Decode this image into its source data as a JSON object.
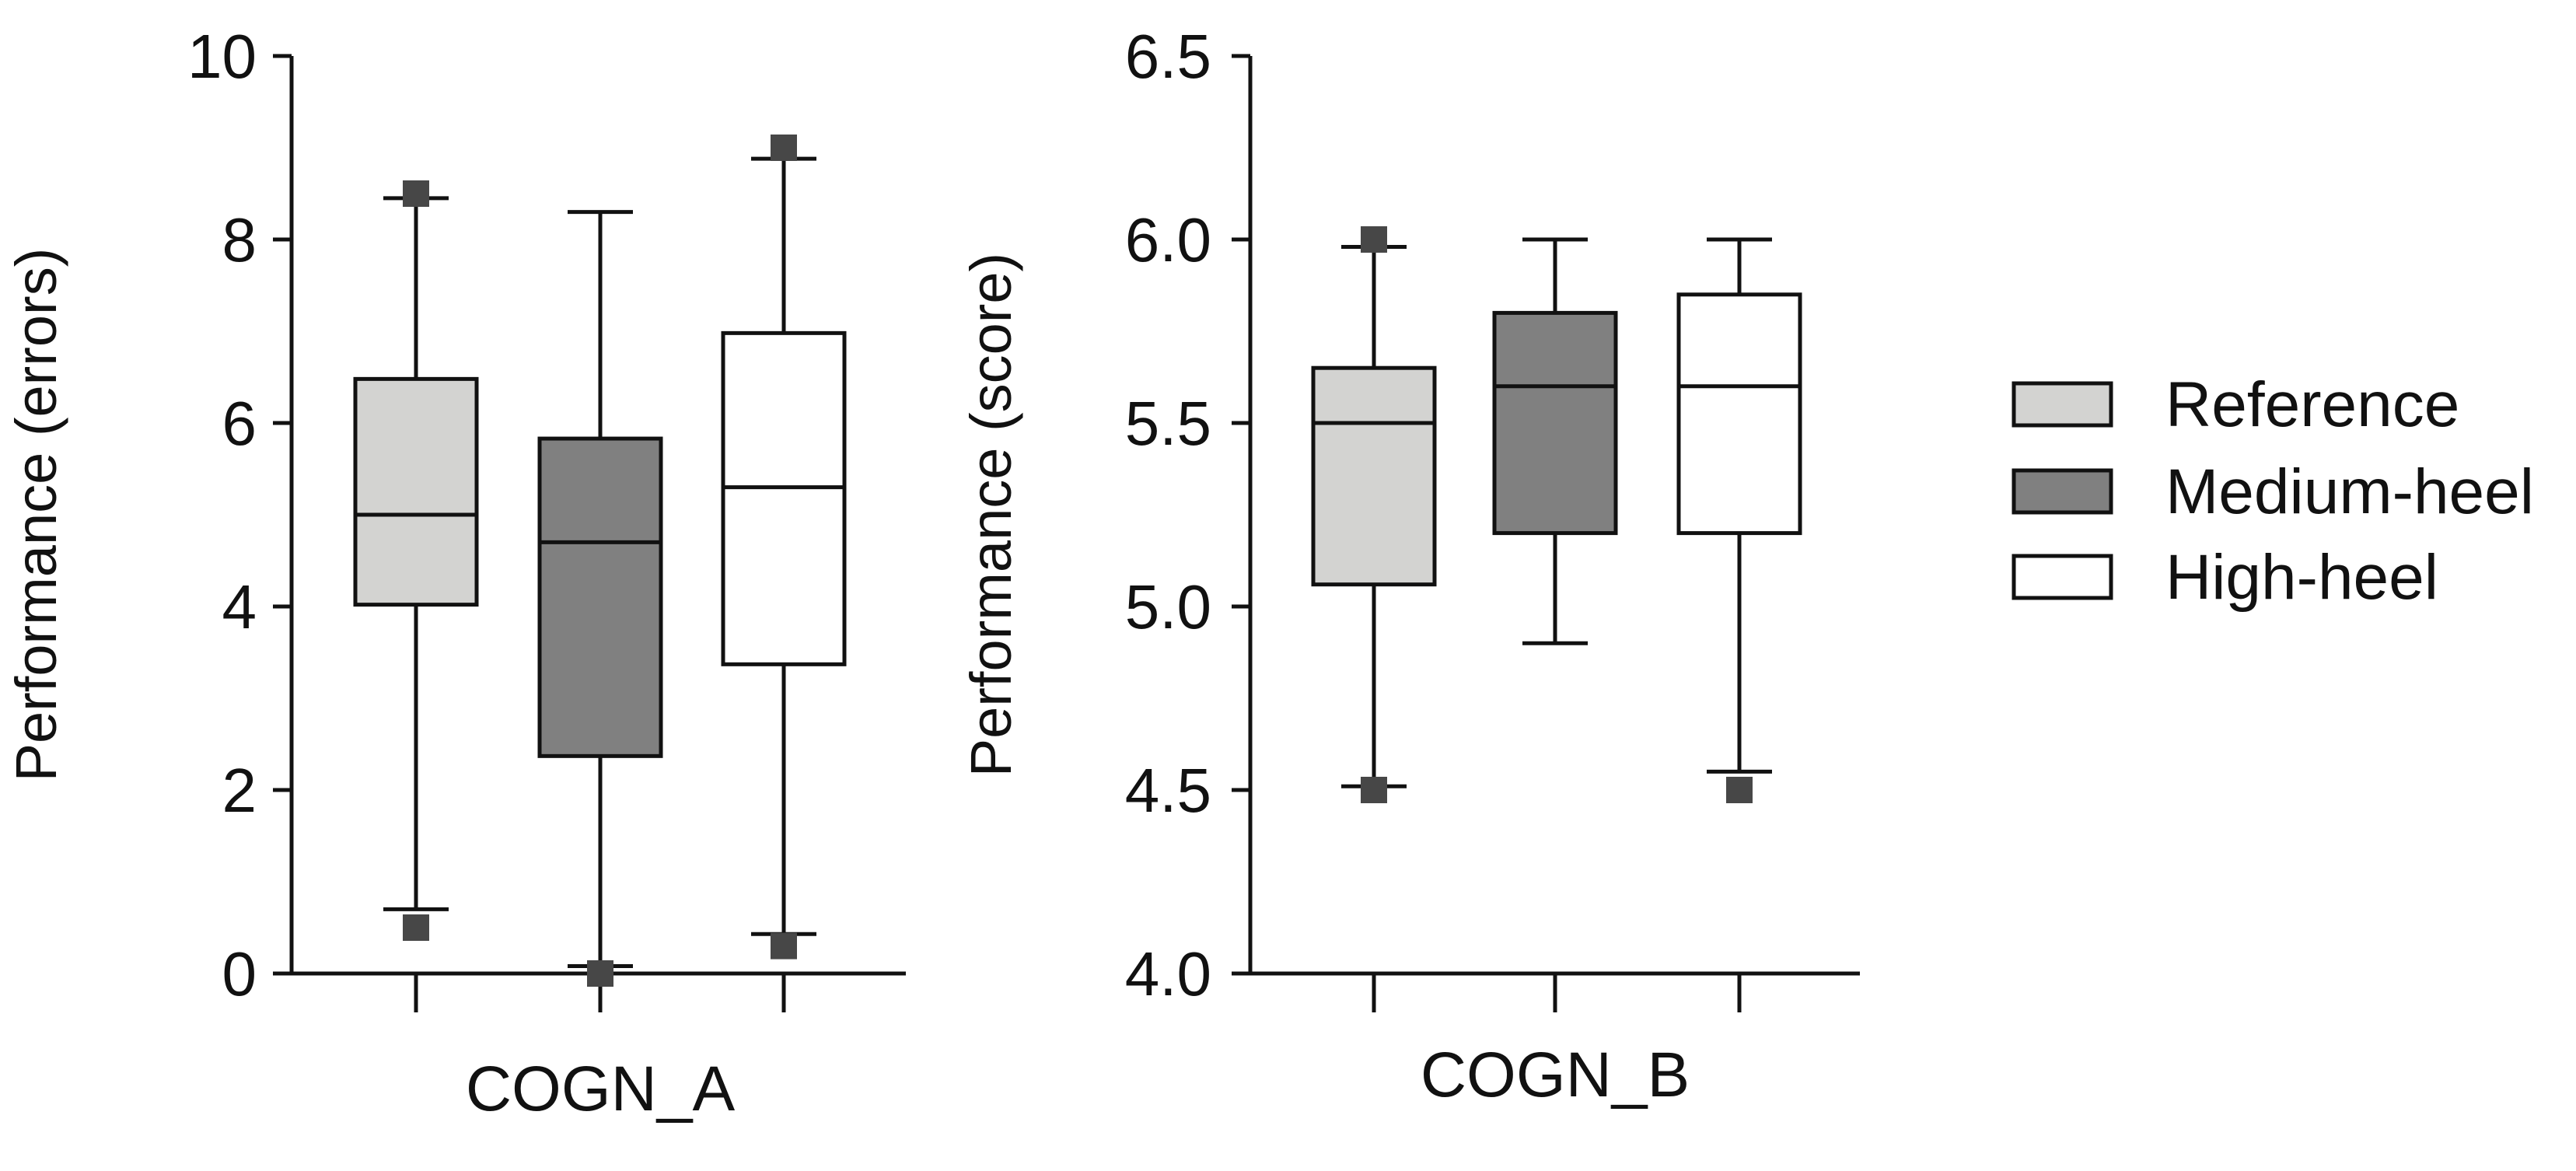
{
  "chart_data": [
    {
      "type": "box",
      "xlabel": "COGN_A",
      "ylabel": "Performance (errors)",
      "ylim": [
        0,
        10
      ],
      "yticks": [
        0,
        2,
        4,
        6,
        8,
        10
      ],
      "yticklabels": [
        "0",
        "2",
        "4",
        "6",
        "8",
        "10"
      ],
      "groups": [
        {
          "name": "Reference",
          "whisker_low": 0.7,
          "q1": 4.02,
          "median": 5.0,
          "q3": 6.48,
          "whisker_high": 8.45,
          "outliers": [
            0.5,
            8.5
          ]
        },
        {
          "name": "Medium-heel",
          "whisker_low": 0.08,
          "q1": 2.37,
          "median": 4.7,
          "q3": 5.83,
          "whisker_high": 8.3,
          "outliers": [
            0.0
          ]
        },
        {
          "name": "High-heel",
          "whisker_low": 0.43,
          "q1": 3.37,
          "median": 5.3,
          "q3": 6.98,
          "whisker_high": 8.88,
          "outliers": [
            0.3,
            9.0
          ]
        }
      ]
    },
    {
      "type": "box",
      "xlabel": "COGN_B",
      "ylabel": "Performance (score)",
      "ylim": [
        4.0,
        6.5
      ],
      "yticks": [
        4.0,
        4.5,
        5.0,
        5.5,
        6.0,
        6.5
      ],
      "yticklabels": [
        "4.0",
        "4.5",
        "5.0",
        "5.5",
        "6.0",
        "6.5"
      ],
      "groups": [
        {
          "name": "Reference",
          "whisker_low": 4.51,
          "q1": 5.06,
          "median": 5.5,
          "q3": 5.65,
          "whisker_high": 5.98,
          "outliers": [
            4.5,
            6.0
          ]
        },
        {
          "name": "Medium-heel",
          "whisker_low": 4.9,
          "q1": 5.2,
          "median": 5.6,
          "q3": 5.8,
          "whisker_high": 6.0,
          "outliers": []
        },
        {
          "name": "High-heel",
          "whisker_low": 4.55,
          "q1": 5.2,
          "median": 5.6,
          "q3": 5.85,
          "whisker_high": 6.0,
          "outliers": [
            4.5
          ]
        }
      ]
    }
  ],
  "legend": [
    {
      "label": "Reference",
      "color": "#d3d3d1"
    },
    {
      "label": "Medium-heel",
      "color": "#808080"
    },
    {
      "label": "High-heel",
      "color": "#ffffff"
    }
  ],
  "colors": {
    "axis": "#111111",
    "outlier": "#474747"
  }
}
